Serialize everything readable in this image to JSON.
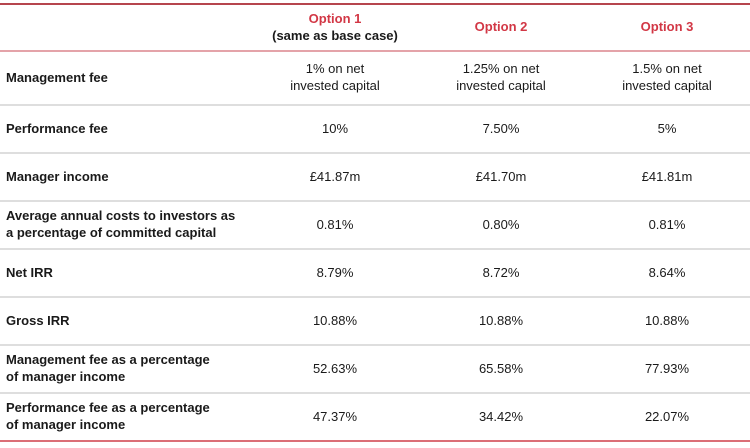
{
  "colors": {
    "header_text_red": "#d23745",
    "top_border": "#b6454e",
    "header_underline": "#e4a3a9",
    "row_divider": "#dedede",
    "bottom_border": "#db6f77",
    "body_text": "#1a1a1a"
  },
  "table": {
    "header": {
      "columns": [
        {
          "label": "Option 1",
          "sub": "(same as base case)"
        },
        {
          "label": "Option 2",
          "sub": ""
        },
        {
          "label": "Option 3",
          "sub": ""
        }
      ]
    },
    "rows": [
      {
        "label": "Management fee",
        "values": [
          "1% on net\ninvested capital",
          "1.25% on net\ninvested capital",
          "1.5% on net\ninvested capital"
        ]
      },
      {
        "label": "Performance fee",
        "values": [
          "10%",
          "7.50%",
          "5%"
        ]
      },
      {
        "label": "Manager income",
        "values": [
          "£41.87m",
          "£41.70m",
          "£41.81m"
        ]
      },
      {
        "label": "Average annual costs to investors as\na percentage of committed capital",
        "values": [
          "0.81%",
          "0.80%",
          "0.81%"
        ]
      },
      {
        "label": "Net IRR",
        "values": [
          "8.79%",
          "8.72%",
          "8.64%"
        ]
      },
      {
        "label": "Gross IRR",
        "values": [
          "10.88%",
          "10.88%",
          "10.88%"
        ]
      },
      {
        "label": "Management fee as a percentage\nof manager income",
        "values": [
          "52.63%",
          "65.58%",
          "77.93%"
        ]
      },
      {
        "label": "Performance fee as a percentage\nof manager income",
        "values": [
          "47.37%",
          "34.42%",
          "22.07%"
        ]
      }
    ]
  }
}
